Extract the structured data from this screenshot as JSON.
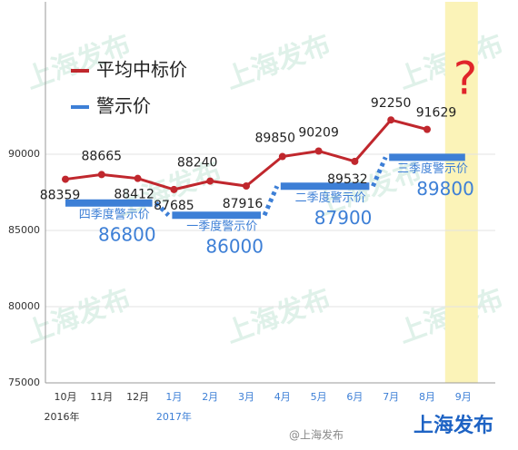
{
  "chart_data": {
    "type": "line",
    "categories": [
      "10月",
      "11月",
      "12月",
      "1月",
      "2月",
      "3月",
      "4月",
      "5月",
      "6月",
      "7月",
      "8月",
      "9月"
    ],
    "category_years": [
      "2016年",
      null,
      null,
      "2017年",
      null,
      null,
      null,
      null,
      null,
      null,
      null,
      null
    ],
    "series": [
      {
        "name": "平均中标价",
        "color": "#c0272d",
        "values": [
          88359,
          88665,
          88412,
          87685,
          88240,
          87916,
          89850,
          90209,
          89532,
          92250,
          91629,
          null
        ]
      },
      {
        "name": "警示价",
        "color": "#3d7fd6",
        "values": [
          86800,
          86800,
          86800,
          86000,
          86000,
          86000,
          87900,
          87900,
          87900,
          89800,
          89800,
          89800
        ],
        "period_labels": [
          "四季度警示价",
          null,
          null,
          "一季度警示价",
          null,
          null,
          "二季度警示价",
          null,
          null,
          "三季度警示价",
          null,
          null
        ]
      }
    ],
    "ylim": [
      75000,
      100000
    ],
    "yticks": [
      75000,
      80000,
      85000,
      90000
    ],
    "grid": true,
    "highlight_index": 11,
    "annotation": "?",
    "watermark": "上海发布",
    "weibo": "@上海发布",
    "brand": "上海发布"
  }
}
